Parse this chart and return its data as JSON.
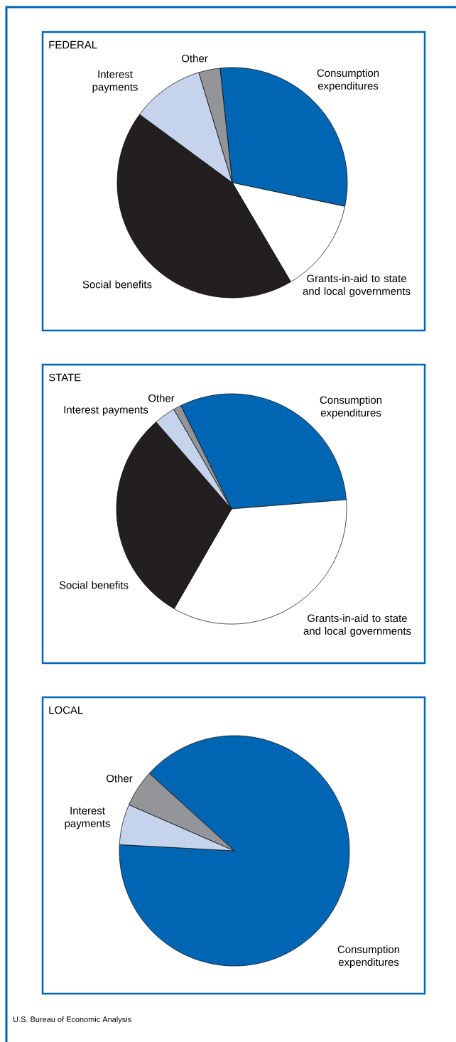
{
  "chart_data": [
    {
      "type": "pie",
      "title": "FEDERAL",
      "categories": [
        "Consumption expenditures",
        "Grants-in-aid to state and local governments",
        "Social benefits",
        "Interest payments",
        "Other"
      ],
      "values": [
        30.0,
        13.2,
        43.6,
        10.2,
        3.0
      ],
      "colors": [
        "#0066b3",
        "#ffffff",
        "#231f20",
        "#c5d3ec",
        "#939598"
      ]
    },
    {
      "type": "pie",
      "title": "STATE",
      "categories": [
        "Consumption expenditures",
        "Grants-in-aid to state and local governments",
        "Social benefits",
        "Interest payments",
        "Other"
      ],
      "values": [
        31.0,
        34.6,
        30.3,
        3.0,
        1.1
      ],
      "colors": [
        "#0066b3",
        "#ffffff",
        "#231f20",
        "#c5d3ec",
        "#939598"
      ]
    },
    {
      "type": "pie",
      "title": "LOCAL",
      "categories": [
        "Consumption expenditures",
        "Interest payments",
        "Other"
      ],
      "values": [
        89.1,
        5.7,
        5.2
      ],
      "colors": [
        "#0066b3",
        "#c5d3ec",
        "#939598"
      ],
      "annotations": [
        "U.S. Bureau of Economic Analysis"
      ]
    }
  ]
}
